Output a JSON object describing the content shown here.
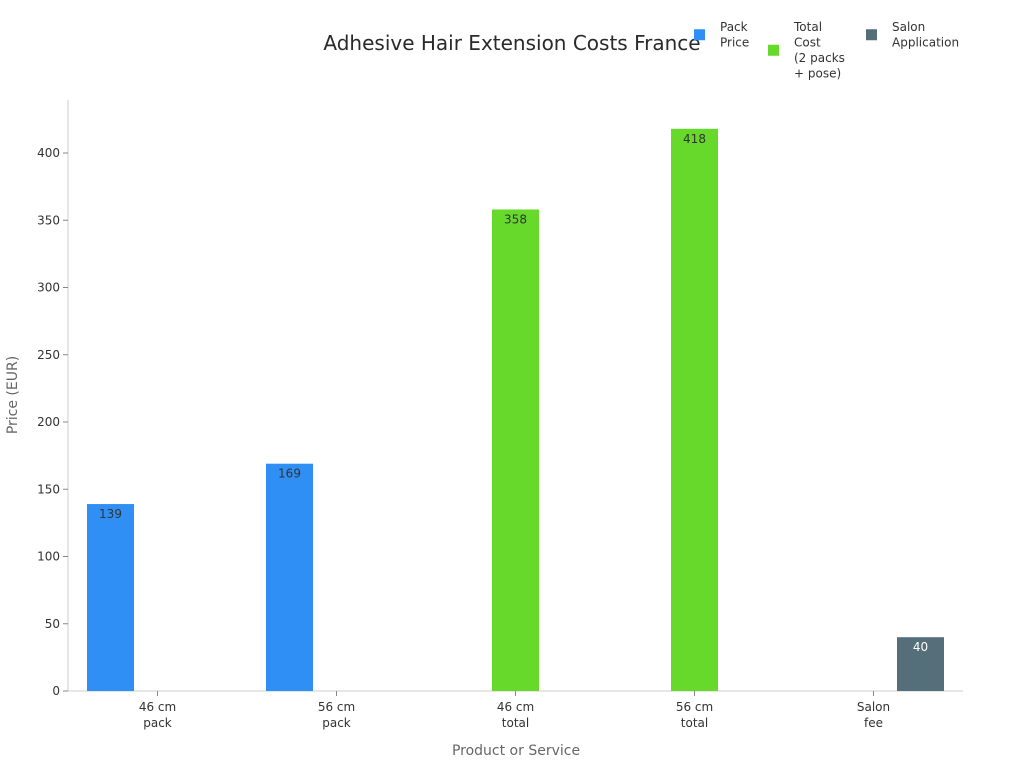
{
  "chart_data": {
    "type": "bar",
    "title": "Adhesive Hair Extension Costs France",
    "xlabel": "Product or Service",
    "ylabel": "Price (EUR)",
    "ylim": [
      0,
      440
    ],
    "yticks": [
      0,
      50,
      100,
      150,
      200,
      250,
      300,
      350,
      400
    ],
    "grid": false,
    "legend_position": "top-right",
    "categories": [
      [
        "46 cm",
        "pack"
      ],
      [
        "56 cm",
        "pack"
      ],
      [
        "46 cm",
        "total"
      ],
      [
        "56 cm",
        "total"
      ],
      [
        "Salon",
        "fee"
      ]
    ],
    "series": [
      {
        "name": [
          "Pack",
          "Price"
        ],
        "color": "#2f8ff5",
        "label_color": "#333333",
        "values": [
          139,
          169,
          null,
          null,
          null
        ]
      },
      {
        "name": [
          "Total",
          "Cost",
          "(2 packs",
          "+ pose)"
        ],
        "color": "#66d92a",
        "label_color": "#333333",
        "values": [
          null,
          null,
          358,
          418,
          null
        ]
      },
      {
        "name": [
          "Salon",
          "Application"
        ],
        "color": "#546e7a",
        "label_color": "#ffffff",
        "values": [
          null,
          null,
          null,
          null,
          40
        ]
      }
    ]
  }
}
